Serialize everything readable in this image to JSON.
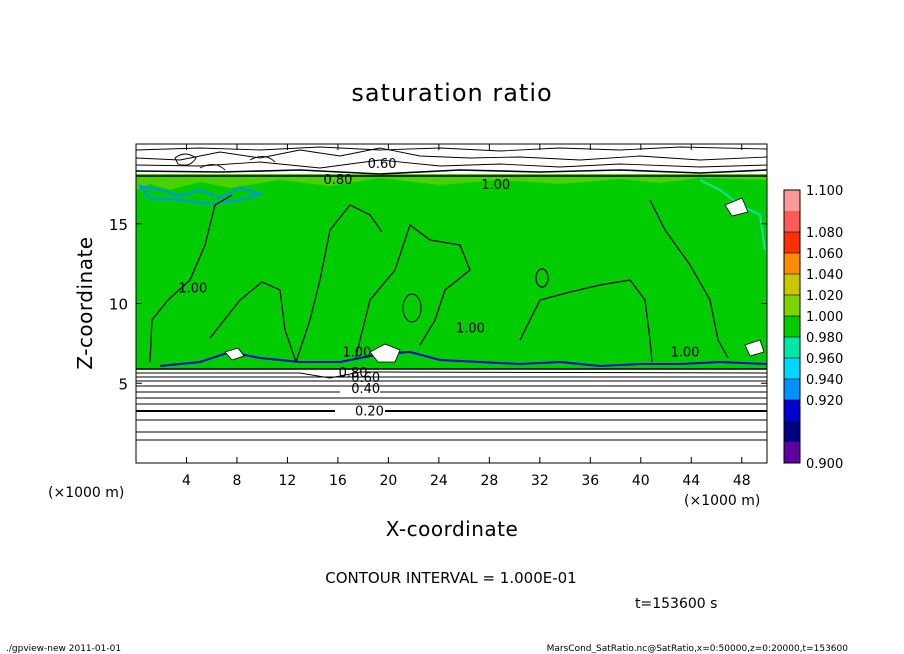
{
  "chart_data": {
    "type": "heatmap",
    "title": "saturation ratio",
    "xlabel": "X-coordinate",
    "ylabel": "Z-coordinate",
    "x_unit_left": "(×1000 m)",
    "x_unit_right": "(×1000 m)",
    "xlim": [
      0,
      50
    ],
    "ylim": [
      0,
      20
    ],
    "xticks": [
      "4",
      "8",
      "12",
      "16",
      "20",
      "24",
      "28",
      "32",
      "36",
      "40",
      "44",
      "48"
    ],
    "xtick_values": [
      4,
      8,
      12,
      16,
      20,
      24,
      28,
      32,
      36,
      40,
      44,
      48
    ],
    "yticks": [
      "5",
      "10",
      "15"
    ],
    "ytick_values": [
      5,
      10,
      15
    ],
    "colorbar": {
      "labels": [
        "1.100",
        "1.080",
        "1.060",
        "1.040",
        "1.020",
        "1.000",
        "0.980",
        "0.960",
        "0.940",
        "0.920",
        "0.900"
      ],
      "colors": [
        "#ff9a9a",
        "#ff5a5a",
        "#ff3000",
        "#ff8c00",
        "#c8c800",
        "#7ed300",
        "#00cc00",
        "#00e8a8",
        "#00d8ff",
        "#0090ff",
        "#0000d0",
        "#000080",
        "#6000a0"
      ]
    },
    "contour_labels": [
      {
        "text": "0.60",
        "x": 19.5,
        "z": 18.8
      },
      {
        "text": "0.80",
        "x": 16,
        "z": 17.8
      },
      {
        "text": "1.00",
        "x": 28.5,
        "z": 17.5
      },
      {
        "text": "1.00",
        "x": 4.5,
        "z": 11
      },
      {
        "text": "1.00",
        "x": 26.5,
        "z": 8.5
      },
      {
        "text": "1.00",
        "x": 17.5,
        "z": 7
      },
      {
        "text": "1.00",
        "x": 43.5,
        "z": 7
      },
      {
        "text": "0.80",
        "x": 17.2,
        "z": 5.7
      },
      {
        "text": "0.60",
        "x": 18.2,
        "z": 5.4
      },
      {
        "text": "0.40",
        "x": 18.2,
        "z": 4.7
      },
      {
        "text": "0.20",
        "x": 18.5,
        "z": 3.3
      }
    ],
    "green_region_z": [
      6,
      18
    ],
    "contour_interval_text": "CONTOUR INTERVAL = 1.000E-01",
    "time_text": "t=153600 s"
  },
  "footer": {
    "left": "./gpview-new   2011-01-01",
    "right": "MarsCond_SatRatio.nc@SatRatio,x=0:50000,z=0:20000,t=153600"
  }
}
